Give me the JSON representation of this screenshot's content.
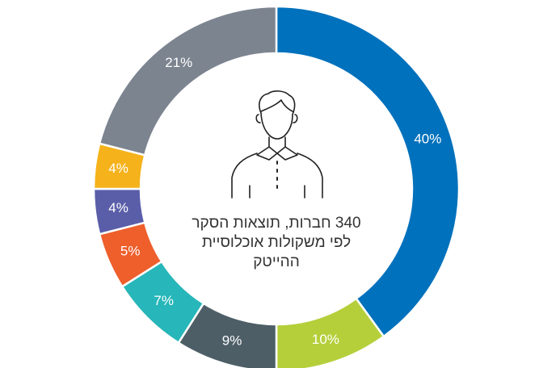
{
  "chart_data": {
    "type": "donut",
    "values": [
      40,
      10,
      9,
      7,
      5,
      4,
      4,
      21
    ],
    "value_labels": [
      "40%",
      "10%",
      "9%",
      "7%",
      "5%",
      "4%",
      "4%",
      "21%"
    ],
    "colors": [
      "#0071bc",
      "#b5cf3a",
      "#4d5e67",
      "#27b6b9",
      "#ee5f2c",
      "#5a5ea9",
      "#f5b21b",
      "#7c8490"
    ],
    "center_text": [
      "340 חברות, תוצאות הסקר",
      "לפי משקולות אוכלוסיית",
      "ההייטק"
    ]
  }
}
